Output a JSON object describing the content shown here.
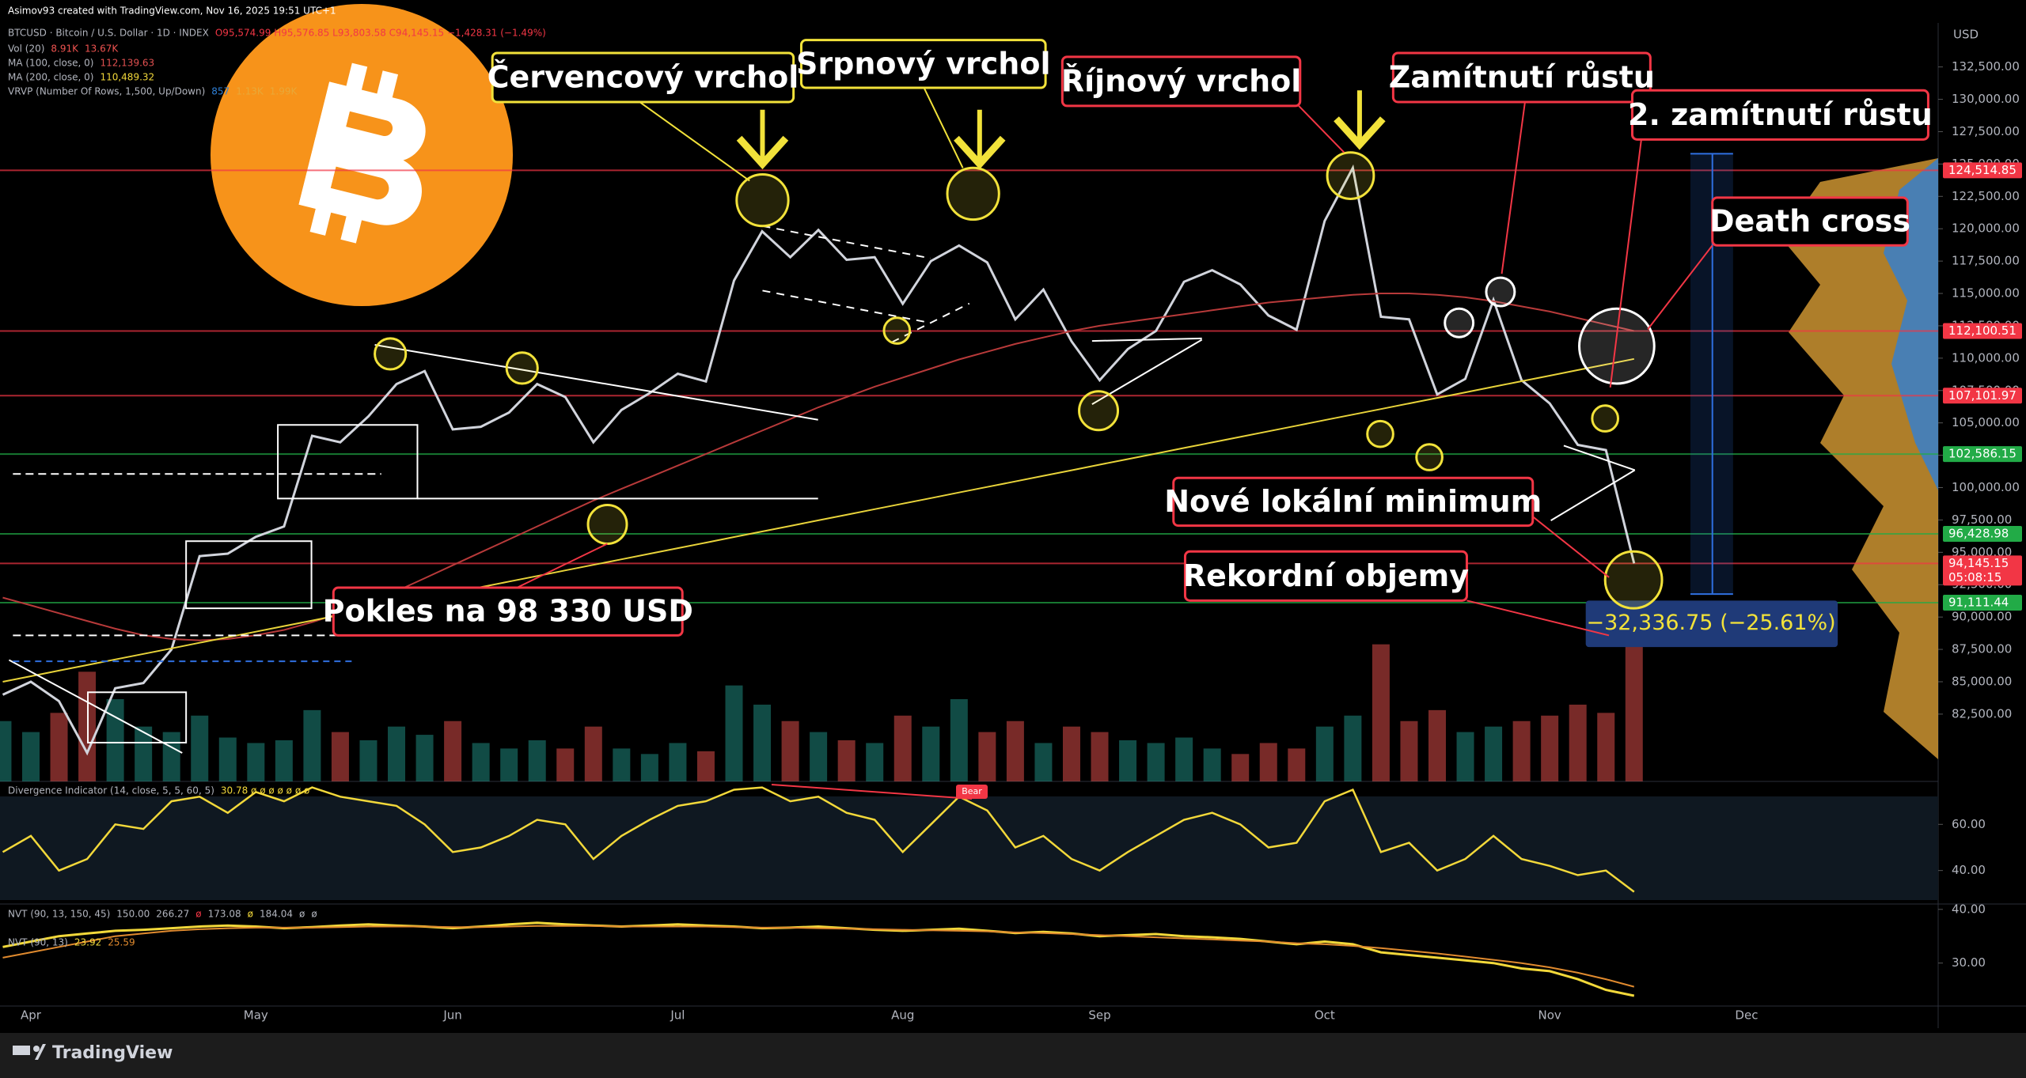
{
  "header": "Asimov93 created with TradingView.com, Nov 16, 2025 19:51 UTC+1",
  "currency": "USD",
  "footer": "TradingView",
  "measure_label": "−32,336.75 (−25.61%)",
  "annotations": [
    "Červencový vrchol",
    "Srpnový vrchol",
    "Říjnový vrchol",
    "Zamítnutí růstu",
    "2. zamítnutí růstu",
    "Death cross",
    "Nové lokální minimum",
    "Rekordní objemy",
    "Pokles na 98 330 USD"
  ],
  "vrvp_legend": [
    "VRVP (Number Of Rows, 1,500, Up/Down)",
    "857",
    "1.13K",
    "1.99K"
  ],
  "nvt_legend_1": [
    "NVT (90, 13, 150, 45)",
    "150.00",
    "266.27",
    "ø",
    "173.08",
    "ø",
    "184.04",
    "ø",
    "ø"
  ],
  "chart_data": [
    {
      "type": "line",
      "legend_title": "BTCUSD · Bitcoin / U.S. Dollar · 1D · INDEX",
      "legend_ohlc": "O95,574.99 H95,576.85 L93,803.58 C94,145.15 −1,428.31 (−1.49%)",
      "categories": [
        null,
        "Apr",
        null,
        null,
        null,
        null,
        null,
        null,
        null,
        "May",
        null,
        null,
        null,
        null,
        null,
        null,
        "Jun",
        null,
        null,
        null,
        null,
        null,
        null,
        null,
        "Jul",
        null,
        null,
        null,
        null,
        null,
        null,
        null,
        "Aug",
        null,
        null,
        null,
        null,
        null,
        null,
        "Sep",
        null,
        null,
        null,
        null,
        null,
        null,
        null,
        "Oct",
        null,
        null,
        null,
        null,
        null,
        null,
        null,
        "Nov",
        null,
        null,
        null,
        null,
        null,
        null,
        "Dec",
        null,
        null,
        null,
        null,
        null,
        null
      ],
      "series": [
        {
          "name": "BTCUSD",
          "color": "#d1d4dc",
          "values": [
            84000,
            85000,
            83500,
            79500,
            84500,
            84900,
            87500,
            94700,
            94900,
            96200,
            97000,
            104000,
            103500,
            105500,
            108000,
            109000,
            104500,
            104700,
            105800,
            108000,
            107000,
            103500,
            106000,
            107300,
            108800,
            108200,
            116000,
            119800,
            117800,
            119900,
            117600,
            117800,
            114200,
            117500,
            118700,
            117400,
            113000,
            115300,
            111300,
            108300,
            110700,
            112100,
            115900,
            116800,
            115700,
            113300,
            112200,
            120600,
            124700,
            113200,
            113000,
            107200,
            108400,
            114500,
            108300,
            106500,
            103300,
            102900,
            94145.15,
            null,
            null,
            null,
            null,
            null,
            null,
            null,
            null,
            null,
            null
          ]
        },
        {
          "name": "MA (100, close, 0)",
          "legend_value": "112,139.63",
          "color": "#b83a3a",
          "values": [
            91500,
            90900,
            90300,
            89700,
            89100,
            88600,
            88300,
            88200,
            88300,
            88600,
            89000,
            89600,
            90300,
            91100,
            92000,
            93000,
            94000,
            95000,
            96000,
            97000,
            98000,
            99000,
            99900,
            100800,
            101700,
            102600,
            103500,
            104400,
            105300,
            106200,
            107000,
            107800,
            108500,
            109200,
            109900,
            110500,
            111100,
            111600,
            112100,
            112500,
            112800,
            113100,
            113400,
            113700,
            114000,
            114300,
            114500,
            114700,
            114900,
            115000,
            115000,
            114900,
            114700,
            114400,
            114000,
            113600,
            113100,
            112600,
            112100,
            null,
            null,
            null,
            null,
            null,
            null,
            null,
            null,
            null,
            null
          ]
        },
        {
          "name": "MA (200, close, 0)",
          "legend_value": "110,489.32",
          "color": "#e8d33a",
          "values": [
            85000,
            85430,
            85860,
            86290,
            86720,
            87150,
            87580,
            88010,
            88440,
            88870,
            89300,
            89730,
            90160,
            90590,
            91020,
            91450,
            91880,
            92310,
            92740,
            93170,
            93600,
            94030,
            94460,
            94890,
            95320,
            95750,
            96180,
            96610,
            97040,
            97470,
            97900,
            98330,
            98760,
            99190,
            99620,
            100050,
            100480,
            100910,
            101340,
            101770,
            102200,
            102630,
            103060,
            103490,
            103920,
            104350,
            104780,
            105210,
            105640,
            106070,
            106500,
            106930,
            107360,
            107790,
            108220,
            108650,
            109080,
            109510,
            109940,
            null,
            null,
            null,
            null,
            null,
            null,
            null,
            null,
            null,
            null
          ]
        }
      ],
      "ylim": [
        77300,
        135900
      ],
      "yticks": [
        {
          "value": 82500,
          "label": "82,500.00"
        },
        {
          "value": 85000,
          "label": "85,000.00"
        },
        {
          "value": 87500,
          "label": "87,500.00"
        },
        {
          "value": 90000,
          "label": "90,000.00"
        },
        {
          "value": 92500,
          "label": "92,500.00"
        },
        {
          "value": 95000,
          "label": "95,000.00"
        },
        {
          "value": 97500,
          "label": "97,500.00"
        },
        {
          "value": 100000,
          "label": "100,000.00"
        },
        {
          "value": 102500,
          "label": "102,500.00"
        },
        {
          "value": 105000,
          "label": "105,000.00"
        },
        {
          "value": 107500,
          "label": "107,500.00"
        },
        {
          "value": 110000,
          "label": "110,000.00"
        },
        {
          "value": 112500,
          "label": "112,500.00"
        },
        {
          "value": 115000,
          "label": "115,000.00"
        },
        {
          "value": 117500,
          "label": "117,500.00"
        },
        {
          "value": 120000,
          "label": "120,000.00"
        },
        {
          "value": 122500,
          "label": "122,500.00"
        },
        {
          "value": 125000,
          "label": "125,000.00"
        },
        {
          "value": 127500,
          "label": "127,500.00"
        },
        {
          "value": 130000,
          "label": "130,000.00"
        },
        {
          "value": 132500,
          "label": "132,500.00"
        }
      ],
      "price_labels": [
        {
          "value": 124514.85,
          "label": "124,514.85",
          "color": "#f23645"
        },
        {
          "value": 112100.51,
          "label": "112,100.51",
          "color": "#f23645"
        },
        {
          "value": 107101.97,
          "label": "107,101.97",
          "color": "#f23645"
        },
        {
          "value": 102586.15,
          "label": "102,586.15",
          "color": "#22ab47"
        },
        {
          "value": 96428.98,
          "label": "96,428.98",
          "color": "#22ab47"
        },
        {
          "value": 94145.15,
          "label": "94,145.15",
          "color": "#f23645",
          "countdown": "05:08:15"
        },
        {
          "value": 91111.44,
          "label": "91,111.44",
          "color": "#22ab47"
        }
      ]
    },
    {
      "type": "bar",
      "name": "Vol (20)",
      "legend_values": [
        "8.91K",
        "13.67K"
      ],
      "up_color": "rgba(38,166,154,0.45)",
      "down_color": "rgba(239,83,80,0.5)",
      "values": [
        22,
        18,
        25,
        40,
        30,
        20,
        18,
        24,
        16,
        14,
        15,
        26,
        18,
        15,
        20,
        17,
        22,
        14,
        12,
        15,
        12,
        20,
        12,
        10,
        14,
        11,
        35,
        28,
        22,
        18,
        15,
        14,
        24,
        20,
        30,
        18,
        22,
        14,
        20,
        18,
        15,
        14,
        16,
        12,
        10,
        14,
        12,
        20,
        24,
        50,
        22,
        26,
        18,
        20,
        22,
        24,
        28,
        25,
        55,
        null,
        null,
        null,
        null,
        null,
        null,
        null,
        null,
        null,
        null
      ],
      "ylim": [
        0,
        60
      ]
    },
    {
      "type": "line",
      "name": "Divergence Indicator (14, close, 5, 5, 60, 5)",
      "legend_values": "30.78 ø ø ø ø ø ø ø",
      "annotation": "Bear",
      "color": "#f2d83a",
      "background": "#0f1821",
      "values": [
        48,
        55,
        40,
        45,
        60,
        58,
        70,
        72,
        65,
        74,
        70,
        76,
        72,
        70,
        68,
        60,
        48,
        50,
        55,
        62,
        60,
        45,
        55,
        62,
        68,
        70,
        75,
        76,
        70,
        72,
        65,
        62,
        48,
        60,
        72,
        66,
        50,
        55,
        45,
        40,
        48,
        55,
        62,
        65,
        60,
        50,
        52,
        70,
        75,
        48,
        52,
        40,
        45,
        55,
        45,
        42,
        38,
        40,
        30.78,
        null,
        null,
        null,
        null,
        null,
        null,
        null,
        null,
        null,
        null
      ],
      "ylim": [
        25.5,
        78.6
      ],
      "yticks": [
        {
          "value": 60,
          "label": "60.00"
        },
        {
          "value": 40,
          "label": "40.00"
        }
      ]
    },
    {
      "type": "line",
      "name": "NVT (90, 13)",
      "series": [
        {
          "name": "23.92",
          "color": "#f2d83a",
          "values": [
            33,
            34,
            35,
            35.5,
            36,
            36.2,
            36.5,
            36.8,
            37,
            36.8,
            36.5,
            36.7,
            37,
            37.2,
            37,
            36.8,
            36.5,
            36.8,
            37.2,
            37.5,
            37.2,
            37,
            36.8,
            37,
            37.2,
            37,
            36.8,
            36.5,
            36.6,
            36.8,
            36.5,
            36.2,
            36,
            36.2,
            36.4,
            36,
            35.6,
            35.8,
            35.5,
            35,
            35.2,
            35.4,
            35,
            34.8,
            34.5,
            34,
            33.5,
            34,
            33.5,
            32,
            31.5,
            31,
            30.5,
            30,
            29,
            28.5,
            27,
            25,
            23.92,
            null,
            null,
            null,
            null,
            null,
            null,
            null,
            null,
            null,
            null
          ]
        },
        {
          "name": "25.59",
          "color": "#e08a2e",
          "values": [
            31,
            32,
            33,
            34,
            35,
            35.5,
            36,
            36.3,
            36.5,
            36.6,
            36.6,
            36.6,
            36.7,
            36.8,
            36.8,
            36.8,
            36.7,
            36.7,
            36.8,
            36.9,
            36.9,
            36.9,
            36.8,
            36.8,
            36.8,
            36.8,
            36.7,
            36.6,
            36.6,
            36.5,
            36.4,
            36.3,
            36.2,
            36.1,
            36,
            35.9,
            35.7,
            35.6,
            35.4,
            35.2,
            35,
            34.8,
            34.6,
            34.4,
            34.2,
            34,
            33.7,
            33.5,
            33.2,
            32.8,
            32.3,
            31.8,
            31.2,
            30.6,
            30,
            29.2,
            28.2,
            27,
            25.59,
            null,
            null,
            null,
            null,
            null,
            null,
            null,
            null,
            null,
            null
          ]
        }
      ],
      "ylim": [
        22,
        41
      ],
      "yticks": [
        {
          "value": 40,
          "label": "40.00"
        },
        {
          "value": 30,
          "label": "30.00"
        }
      ]
    }
  ]
}
